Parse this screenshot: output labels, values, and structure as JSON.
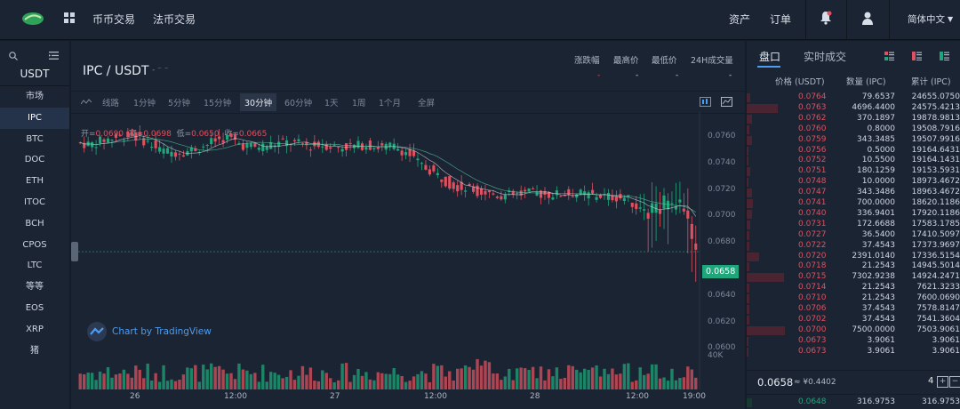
{
  "topbar": {
    "nav": [
      "币币交易",
      "法币交易"
    ],
    "assets": "资产",
    "orders": "订单",
    "language": "简体中文"
  },
  "left": {
    "quote": "USDT",
    "market": "市场",
    "coins": [
      "IPC",
      "BTC",
      "DOC",
      "ETH",
      "ITOC",
      "BCH",
      "CPOS",
      "LTC",
      "等等",
      "EOS",
      "XRP",
      "猪"
    ]
  },
  "chart": {
    "pair": "IPC / USDT",
    "stats_labels": [
      "涨跌幅",
      "最高价",
      "最低价",
      "24H成交量"
    ],
    "stats_values": [
      "-",
      "-",
      "-",
      "-"
    ],
    "tabs": [
      "线路",
      "1分钟",
      "5分钟",
      "15分钟",
      "30分钟",
      "60分钟",
      "1天",
      "1周",
      "1个月",
      "全屏"
    ],
    "active_tab": "30分钟",
    "ohlc": {
      "open_label": "开=",
      "open": "0.0690",
      "high_label": "高=",
      "high": "0.0698",
      "low_label": "低=",
      "low": "0.0650",
      "close_label": "收=",
      "close": "0.0665"
    },
    "current_price": "0.0658",
    "watermark": "Chart by TradingView",
    "volume_label": "40K",
    "chart_data": {
      "type": "candlestick",
      "y_ticks": [
        "0.0760",
        "0.0740",
        "0.0720",
        "0.0700",
        "0.0680",
        "0.0660",
        "0.0640",
        "0.0620",
        "0.0600"
      ],
      "ylim": [
        0.06,
        0.0765
      ],
      "x_ticks": [
        "26",
        "12:00",
        "27",
        "12:00",
        "28",
        "12:00",
        "19:00"
      ],
      "series": [
        {
          "name": "price",
          "values": [
            0.0744,
            0.0742,
            0.0746,
            0.0748,
            0.075,
            0.0745,
            0.0738,
            0.0736,
            0.0737,
            0.074,
            0.0745,
            0.0748,
            0.0742,
            0.074,
            0.0742,
            0.0744,
            0.0743,
            0.0741,
            0.0742,
            0.074,
            0.0741,
            0.0742,
            0.074,
            0.0741,
            0.0736,
            0.0726,
            0.072,
            0.0712,
            0.0708,
            0.0706,
            0.0704,
            0.0702,
            0.0703,
            0.0704,
            0.0703,
            0.0703,
            0.0704,
            0.0703,
            0.0702,
            0.0701,
            0.07,
            0.069,
            0.0692,
            0.0695,
            0.0692,
            0.0658
          ]
        }
      ]
    }
  },
  "orderbook": {
    "tabs": [
      "盘口",
      "实时成交"
    ],
    "headers": [
      "价格 (USDT)",
      "数量 (IPC)",
      "累计 (IPC)"
    ],
    "rows": [
      {
        "price": "0.0764",
        "qty": "79.6537",
        "total": "24655.0750",
        "depth": 0.05
      },
      {
        "price": "0.0763",
        "qty": "4696.4400",
        "total": "24575.4213",
        "depth": 0.5
      },
      {
        "price": "0.0762",
        "qty": "370.1897",
        "total": "19878.9813",
        "depth": 0.08
      },
      {
        "price": "0.0760",
        "qty": "0.8000",
        "total": "19508.7916",
        "depth": 0.04
      },
      {
        "price": "0.0759",
        "qty": "343.3485",
        "total": "19507.9916",
        "depth": 0.08
      },
      {
        "price": "0.0756",
        "qty": "0.5000",
        "total": "19164.6431",
        "depth": 0.03
      },
      {
        "price": "0.0752",
        "qty": "10.5500",
        "total": "19164.1431",
        "depth": 0.03
      },
      {
        "price": "0.0751",
        "qty": "180.1259",
        "total": "19153.5931",
        "depth": 0.05
      },
      {
        "price": "0.0748",
        "qty": "10.0000",
        "total": "18973.4672",
        "depth": 0.03
      },
      {
        "price": "0.0747",
        "qty": "343.3486",
        "total": "18963.4672",
        "depth": 0.08
      },
      {
        "price": "0.0741",
        "qty": "700.0000",
        "total": "18620.1186",
        "depth": 0.1
      },
      {
        "price": "0.0740",
        "qty": "336.9401",
        "total": "17920.1186",
        "depth": 0.08
      },
      {
        "price": "0.0731",
        "qty": "172.6688",
        "total": "17583.1785",
        "depth": 0.05
      },
      {
        "price": "0.0727",
        "qty": "36.5400",
        "total": "17410.5097",
        "depth": 0.04
      },
      {
        "price": "0.0722",
        "qty": "37.4543",
        "total": "17373.9697",
        "depth": 0.04
      },
      {
        "price": "0.0720",
        "qty": "2391.0140",
        "total": "17336.5154",
        "depth": 0.2
      },
      {
        "price": "0.0718",
        "qty": "21.2543",
        "total": "14945.5014",
        "depth": 0.04
      },
      {
        "price": "0.0715",
        "qty": "7302.9238",
        "total": "14924.2471",
        "depth": 0.6
      },
      {
        "price": "0.0714",
        "qty": "21.2543",
        "total": "7621.3233",
        "depth": 0.04
      },
      {
        "price": "0.0710",
        "qty": "21.2543",
        "total": "7600.0690",
        "depth": 0.04
      },
      {
        "price": "0.0706",
        "qty": "37.4543",
        "total": "7578.8147",
        "depth": 0.04
      },
      {
        "price": "0.0702",
        "qty": "37.4543",
        "total": "7541.3604",
        "depth": 0.04
      },
      {
        "price": "0.0700",
        "qty": "7500.0000",
        "total": "7503.9061",
        "depth": 0.62
      },
      {
        "price": "0.0673",
        "qty": "3.9061",
        "total": "3.9061",
        "depth": 0.03
      },
      {
        "price": "0.0673",
        "qty": "3.9061",
        "total": "3.9061",
        "depth": 0.03
      }
    ],
    "last_price": "0.0658",
    "last_price_equiv": "≈ ¥0.4402",
    "precision": "4",
    "bottom_row": {
      "price": "0.0648",
      "qty": "316.9753",
      "total": "316.9753"
    }
  },
  "colors": {
    "up": "#1fa67a",
    "down": "#e0505e",
    "accent": "#4c9cf0"
  }
}
